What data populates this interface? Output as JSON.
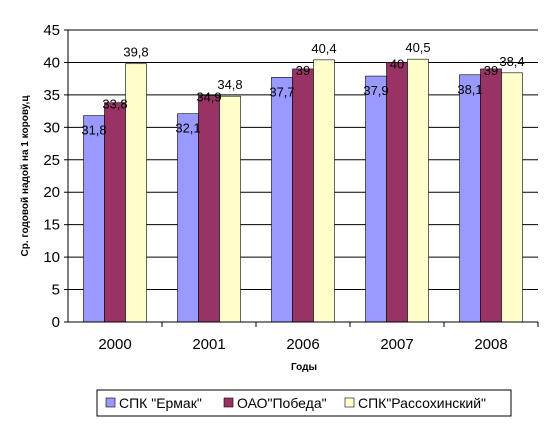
{
  "chart_data": {
    "type": "bar",
    "title": "",
    "xlabel": "Годы",
    "ylabel": "Ср. годовой надой на 1 корову,ц",
    "categories": [
      "2000",
      "2001",
      "2006",
      "2007",
      "2008"
    ],
    "ylim": [
      0,
      45
    ],
    "yticks": [
      0,
      5,
      10,
      15,
      20,
      25,
      30,
      35,
      40,
      45
    ],
    "grid": true,
    "legend_position": "bottom",
    "series": [
      {
        "name": "СПК \"Ермак\"",
        "color": "#9999ff",
        "values": [
          31.8,
          32.1,
          37.7,
          37.9,
          38.1
        ],
        "labels": [
          "31,8",
          "32,1",
          "37,7",
          "37,9",
          "38,1"
        ]
      },
      {
        "name": "ОАО\"Победа\"",
        "color": "#993366",
        "values": [
          33.8,
          34.9,
          39,
          40,
          39
        ],
        "labels": [
          "33,8",
          "34,9",
          "39",
          "40",
          "39"
        ]
      },
      {
        "name": "СПК\"Рассохинский\"",
        "color": "#ffffcc",
        "values": [
          39.8,
          34.8,
          40.4,
          40.5,
          38.4
        ],
        "labels": [
          "39,8",
          "34,8",
          "40,4",
          "40,5",
          "38,4"
        ]
      }
    ]
  }
}
